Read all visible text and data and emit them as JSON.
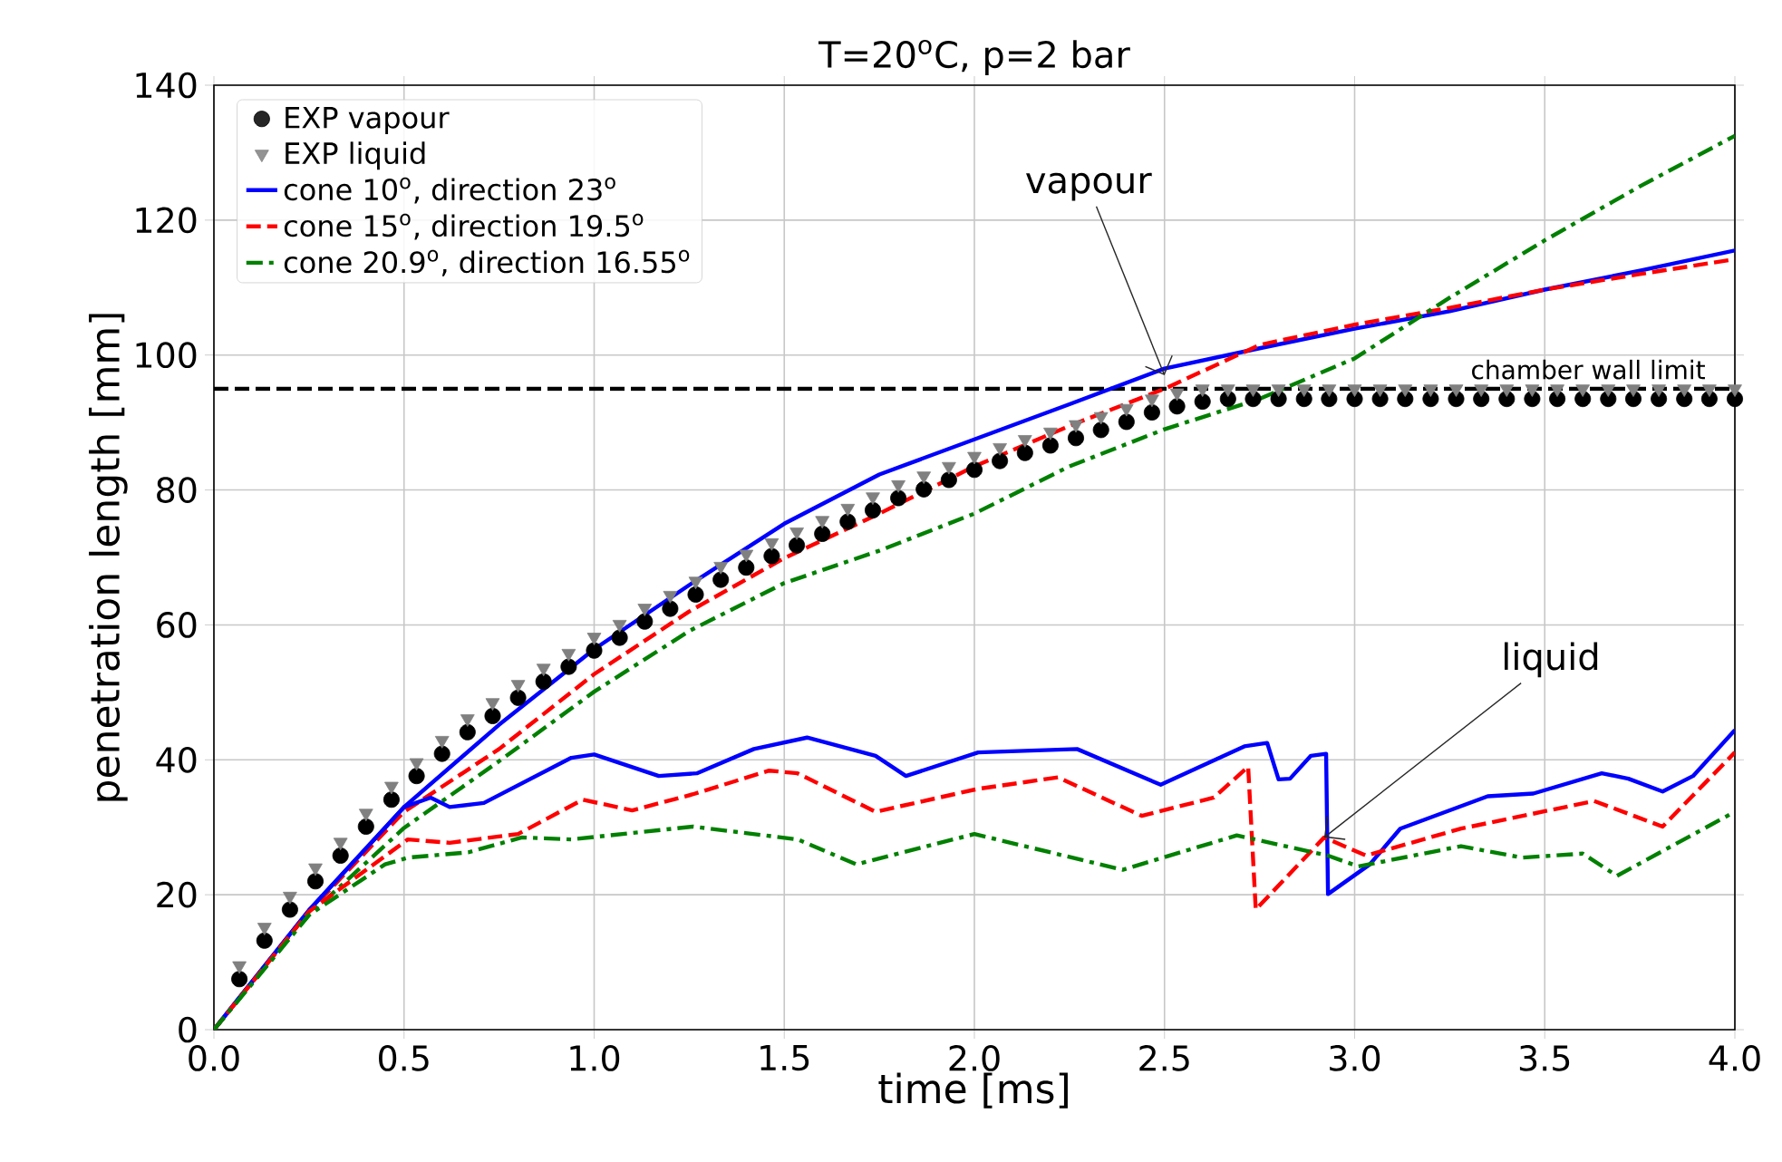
{
  "chart_data": {
    "type": "line",
    "title": "T=20$^{o}$C, p=2 bar",
    "xlabel": "time [ms]",
    "ylabel": "penetration length [mm]",
    "xlim": [
      0,
      4
    ],
    "ylim": [
      0,
      140
    ],
    "xticks": [
      {
        "value": 0,
        "label": "0.0"
      },
      0.5,
      {
        "value": 1,
        "label": "1.0"
      },
      1.5,
      {
        "value": 2,
        "label": "2.0"
      },
      2.5,
      {
        "value": 3,
        "label": "3.0"
      },
      3.5,
      {
        "value": 4,
        "label": "4.0"
      }
    ],
    "yticks": [
      0,
      20,
      40,
      60,
      80,
      100,
      120,
      140
    ],
    "grid": true,
    "legend": "top left",
    "series": [
      {
        "name": "EXP vapour",
        "type": "scatter",
        "marker": "circle",
        "color": "#000000",
        "x": [
          0.067,
          0.133,
          0.2,
          0.267,
          0.333,
          0.4,
          0.467,
          0.533,
          0.6,
          0.667,
          0.733,
          0.8,
          0.867,
          0.933,
          1.0,
          1.067,
          1.133,
          1.2,
          1.267,
          1.333,
          1.4,
          1.467,
          1.533,
          1.6,
          1.667,
          1.733,
          1.8,
          1.867,
          1.933,
          2.0,
          2.067,
          2.133,
          2.2,
          2.267,
          2.333,
          2.4,
          2.467,
          2.533,
          2.6,
          2.667,
          2.733,
          2.8,
          2.867,
          2.933,
          3.0,
          3.067,
          3.133,
          3.2,
          3.267,
          3.333,
          3.4,
          3.467,
          3.533,
          3.6,
          3.667,
          3.733,
          3.8,
          3.867,
          3.933,
          4.0
        ],
        "values": [
          7.5,
          13.2,
          17.8,
          22,
          25.8,
          30.1,
          34.1,
          37.6,
          40.9,
          44.1,
          46.5,
          49.2,
          51.6,
          53.8,
          56.2,
          58.1,
          60.5,
          62.4,
          64.5,
          66.7,
          68.5,
          70.2,
          71.8,
          73.5,
          75.3,
          77,
          78.8,
          80.1,
          81.5,
          83,
          84.3,
          85.5,
          86.6,
          87.7,
          88.9,
          90.1,
          91.5,
          92.4,
          93.1,
          93.5,
          93.5,
          93.5,
          93.5,
          93.5,
          93.5,
          93.5,
          93.5,
          93.5,
          93.5,
          93.5,
          93.5,
          93.5,
          93.5,
          93.5,
          93.5,
          93.5,
          93.5,
          93.5,
          93.5,
          93.5
        ]
      },
      {
        "name": "EXP liquid",
        "type": "scatter",
        "marker": "triangle",
        "color": "#808080",
        "x": [
          0.067,
          0.133,
          0.2,
          0.267,
          0.333,
          0.4,
          0.467,
          0.533,
          0.6,
          0.667,
          0.733,
          0.8,
          0.867,
          0.933,
          1.0,
          1.067,
          1.133,
          1.2,
          1.267,
          1.333,
          1.4,
          1.467,
          1.533,
          1.6,
          1.667,
          1.733,
          1.8,
          1.867,
          1.933,
          2.0,
          2.067,
          2.133,
          2.2,
          2.267,
          2.333,
          2.4,
          2.467,
          2.533,
          2.6,
          2.667,
          2.733,
          2.8,
          2.867,
          2.933,
          3.0,
          3.067,
          3.133,
          3.2,
          3.267,
          3.333,
          3.4,
          3.467,
          3.533,
          3.6,
          3.667,
          3.733,
          3.8,
          3.867,
          3.933,
          4.0
        ],
        "values": [
          9.5,
          15.2,
          19.8,
          24,
          27.8,
          32.1,
          36.1,
          39.6,
          42.9,
          46.1,
          48.5,
          51.2,
          53.6,
          55.8,
          58.2,
          60.1,
          62.5,
          64.4,
          66.5,
          68.7,
          70.5,
          72.2,
          73.8,
          75.5,
          77.3,
          79,
          80.8,
          82.1,
          83.5,
          85,
          86.3,
          87.5,
          88.6,
          89.7,
          90.9,
          92.1,
          93.5,
          94.4,
          95,
          95,
          95,
          95,
          95,
          95,
          95,
          95,
          95,
          95,
          95,
          95,
          95,
          95,
          95,
          95,
          95,
          95,
          95,
          95,
          95,
          95
        ]
      },
      {
        "name": "cone 10$^{o}$, direction 23$^{o}$",
        "line_style": "solid",
        "color": "#0000ff",
        "x": [
          0,
          0.25,
          0.5,
          0.75,
          1.0,
          1.25,
          1.5,
          1.75,
          2.0,
          2.25,
          2.5,
          2.75,
          3.0,
          3.25,
          3.5,
          3.75,
          4.0
        ],
        "values": [
          0,
          17.7,
          33,
          45.2,
          56.4,
          65.9,
          75,
          82.3,
          87.5,
          92.7,
          98,
          101,
          103.9,
          106.5,
          109.7,
          112.5,
          115.5
        ]
      },
      {
        "name": "cone 15$^{o}$, direction 19.5$^{o}$",
        "line_style": "dashed",
        "color": "#ff0000",
        "x": [
          0,
          0.25,
          0.5,
          0.75,
          1.0,
          1.25,
          1.5,
          1.75,
          2.0,
          2.25,
          2.5,
          2.75,
          3.0,
          3.25,
          3.5,
          3.75,
          4.0
        ],
        "values": [
          0,
          17.5,
          32.3,
          41.6,
          52.7,
          62,
          69.9,
          76.5,
          83.5,
          89.5,
          95,
          101.5,
          104.5,
          107,
          109.7,
          112,
          114.2
        ]
      },
      {
        "name": "cone 20.9$^{o}$, direction 16.55$^{o}$",
        "line_style": "dashdot",
        "color": "#008000",
        "x": [
          0,
          0.25,
          0.5,
          0.75,
          1.0,
          1.25,
          1.5,
          1.75,
          2.0,
          2.25,
          2.5,
          2.75,
          3.0,
          3.25,
          3.5,
          3.75,
          4.0
        ],
        "values": [
          0,
          17,
          29.9,
          39.8,
          50.1,
          59.1,
          66.2,
          71,
          76.5,
          83.5,
          89,
          93.5,
          99.5,
          108.5,
          117,
          125,
          132.5
        ]
      },
      {
        "line_style": "solid",
        "color": "#0000ff",
        "x": [
          0,
          0.25,
          0.5,
          0.57,
          0.62,
          0.71,
          0.94,
          1.0,
          1.17,
          1.27,
          1.42,
          1.56,
          1.74,
          1.82,
          2.01,
          2.27,
          2.49,
          2.71,
          2.77,
          2.8,
          2.83,
          2.885,
          2.925,
          2.93,
          3.04,
          3.12,
          3.35,
          3.47,
          3.65,
          3.72,
          3.81,
          3.89,
          4.0
        ],
        "values": [
          0,
          17.7,
          33,
          34.4,
          33,
          33.6,
          40.3,
          40.8,
          37.6,
          38,
          41.6,
          43.3,
          40.6,
          37.6,
          41.1,
          41.6,
          36.3,
          42,
          42.5,
          37.1,
          37.2,
          40.6,
          40.9,
          20.1,
          24.5,
          29.8,
          34.6,
          35,
          38,
          37.2,
          35.3,
          37.6,
          44.4
        ]
      },
      {
        "line_style": "dashed",
        "color": "#ff0000",
        "x": [
          0,
          0.25,
          0.51,
          0.62,
          0.8,
          0.97,
          1.1,
          1.26,
          1.46,
          1.535,
          1.74,
          2.01,
          2.22,
          2.44,
          2.63,
          2.72,
          2.74,
          2.92,
          3.03,
          3.28,
          3.63,
          3.81,
          4.0
        ],
        "values": [
          0,
          17.5,
          28.2,
          27.7,
          29,
          34.1,
          32.5,
          34.9,
          38.4,
          38,
          32.3,
          35.7,
          37.4,
          31.7,
          34.4,
          39,
          17.8,
          28.5,
          25.8,
          29.8,
          33.9,
          30.1,
          41.1
        ]
      },
      {
        "line_style": "dashdot",
        "color": "#008000",
        "x": [
          0,
          0.25,
          0.45,
          0.51,
          0.67,
          0.81,
          0.94,
          1.26,
          1.535,
          1.69,
          2.0,
          2.39,
          2.69,
          2.93,
          3.01,
          3.28,
          3.44,
          3.6,
          3.69,
          4.0
        ],
        "values": [
          0,
          17,
          24.5,
          25.5,
          26.3,
          28.5,
          28.2,
          30.1,
          28.2,
          24.5,
          29,
          23.7,
          28.8,
          25.8,
          24.2,
          27.2,
          25.5,
          26.1,
          22.8,
          32.3
        ]
      }
    ],
    "ref_lines": [
      {
        "axis": "y",
        "value": 95,
        "label": "chamber wall limit",
        "color": "#000000",
        "line_style": "dashed"
      }
    ],
    "annotations": [
      {
        "text": "vapour",
        "x": 2.5,
        "y": 97
      },
      {
        "text": "liquid",
        "x": 2.92,
        "y": 28.5
      }
    ]
  }
}
